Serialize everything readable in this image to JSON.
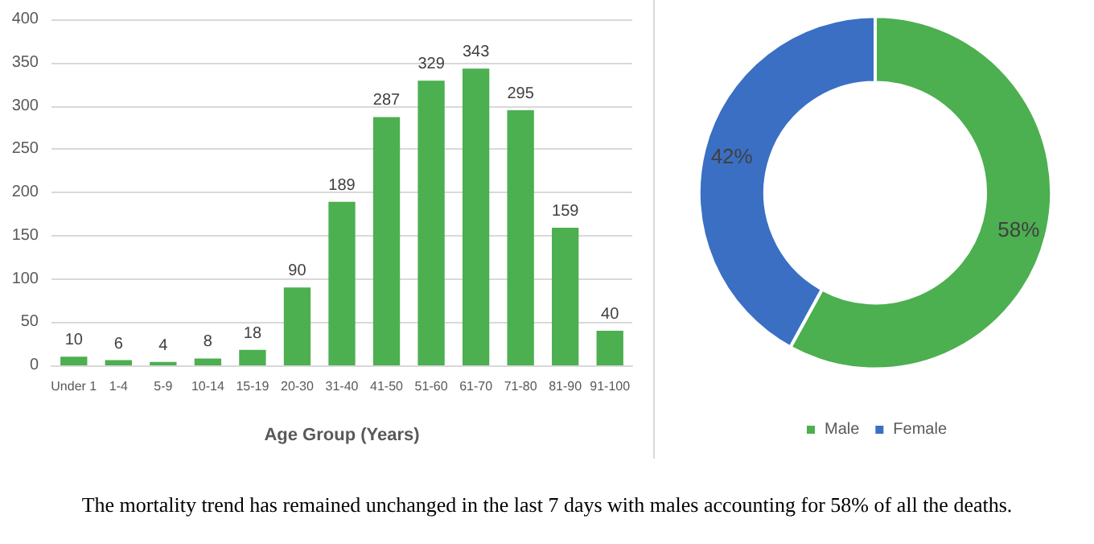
{
  "chart_data": [
    {
      "type": "bar",
      "xlabel": "Age Group (Years)",
      "categories": [
        "Under 1",
        "1-4",
        "5-9",
        "10-14",
        "15-19",
        "20-30",
        "31-40",
        "41-50",
        "51-60",
        "61-70",
        "71-80",
        "81-90",
        "91-100"
      ],
      "values": [
        10,
        6,
        4,
        8,
        18,
        90,
        189,
        287,
        329,
        343,
        295,
        159,
        40
      ],
      "color": "#4caf50",
      "ylim": [
        0,
        400
      ],
      "yticks": [
        0,
        50,
        100,
        150,
        200,
        250,
        300,
        350,
        400
      ],
      "grid": "y",
      "data_labels": true,
      "annotations": [
        "The mortality trend has remained unchanged in the last 7 days with males accounting for 58% of all the deaths."
      ]
    },
    {
      "type": "donut",
      "categories": [
        "Male",
        "Female"
      ],
      "values": [
        58,
        42
      ],
      "colors": [
        "#4caf50",
        "#3a6fc4"
      ],
      "value_labels": [
        "58%",
        "42%"
      ],
      "legend": "bottom"
    }
  ]
}
